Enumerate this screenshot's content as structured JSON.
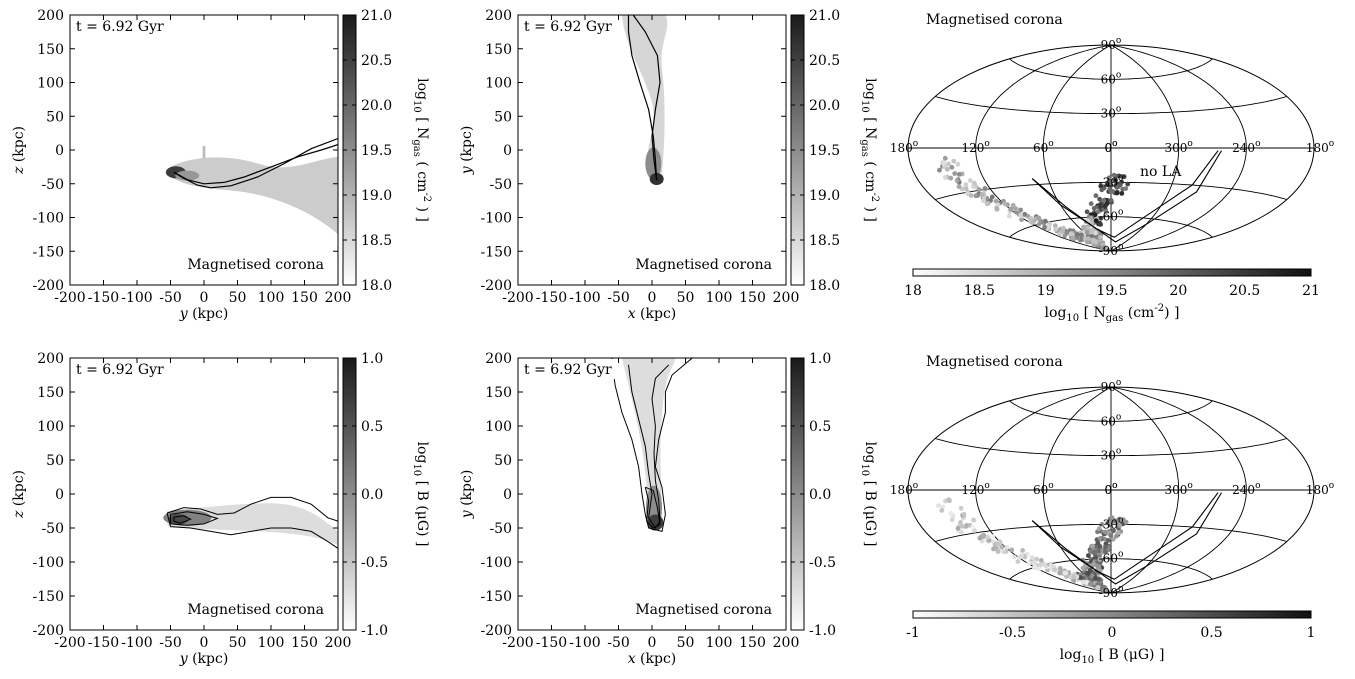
{
  "chart_data": [
    {
      "type": "heatmap",
      "time_label": "t = 6.92 Gyr",
      "annotation": "Magnetised corona",
      "xlabel_var": "y",
      "xlabel_unit": " (kpc)",
      "ylabel_var": "z",
      "ylabel_unit": " (kpc)",
      "xlim": [
        -200,
        200
      ],
      "ylim": [
        -200,
        200
      ],
      "x_ticks": [
        "-200",
        "-150",
        "-100",
        "-50",
        "0",
        "50",
        "100",
        "150",
        "200"
      ],
      "y_ticks": [
        "200",
        "150",
        "100",
        "50",
        "0",
        "-50",
        "-100",
        "-150",
        "-200"
      ],
      "colorbar": {
        "label": "log10 [ Ngas ( cm-2 ) ]",
        "range": [
          18.0,
          21.0
        ],
        "ticks": [
          "21.0",
          "20.5",
          "20.0",
          "19.5",
          "19.0",
          "18.5",
          "18.0"
        ]
      },
      "orbit_paths": [
        [
          [
            -45,
            -33
          ],
          [
            -30,
            -42
          ],
          [
            -10,
            -52
          ],
          [
            10,
            -56
          ],
          [
            40,
            -53
          ],
          [
            80,
            -40
          ],
          [
            120,
            -20
          ],
          [
            160,
            2
          ],
          [
            200,
            17
          ]
        ],
        [
          [
            -45,
            -33
          ],
          [
            -25,
            -44
          ],
          [
            0,
            -50
          ],
          [
            30,
            -48
          ],
          [
            60,
            -40
          ],
          [
            100,
            -25
          ],
          [
            140,
            -10
          ],
          [
            175,
            0
          ],
          [
            200,
            8
          ]
        ]
      ]
    },
    {
      "type": "heatmap",
      "time_label": "t = 6.92 Gyr",
      "annotation": "Magnetised corona",
      "xlabel_var": "x",
      "xlabel_unit": " (kpc)",
      "ylabel_var": "y",
      "ylabel_unit": " (kpc)",
      "xlim": [
        -200,
        200
      ],
      "ylim": [
        -200,
        200
      ],
      "x_ticks": [
        "-200",
        "-150",
        "-100",
        "-50",
        "0",
        "50",
        "100",
        "150",
        "200"
      ],
      "y_ticks": [
        "200",
        "150",
        "100",
        "50",
        "0",
        "-50",
        "-100",
        "-150",
        "-200"
      ],
      "colorbar": {
        "label": "log10 [ Ngas ( cm-2 ) ]",
        "range": [
          18.0,
          21.0
        ],
        "ticks": [
          "21.0",
          "20.5",
          "20.0",
          "19.5",
          "19.0",
          "18.5",
          "18.0"
        ]
      },
      "orbit_paths": [
        [
          [
            -28,
            200
          ],
          [
            -10,
            175
          ],
          [
            8,
            140
          ],
          [
            12,
            100
          ],
          [
            5,
            60
          ],
          [
            0,
            20
          ],
          [
            3,
            -15
          ],
          [
            7,
            -45
          ]
        ],
        [
          [
            -35,
            200
          ],
          [
            -35,
            175
          ],
          [
            -30,
            140
          ],
          [
            -18,
            100
          ],
          [
            -5,
            60
          ],
          [
            2,
            20
          ],
          [
            5,
            -15
          ],
          [
            7,
            -45
          ]
        ]
      ]
    },
    {
      "type": "scatter",
      "title": "Magnetised corona",
      "projection": "aitoff",
      "label": "no LA",
      "lon_labels": [
        "180",
        "120",
        "60",
        "0",
        "300",
        "240",
        "180"
      ],
      "lat_labels": [
        "90",
        "60",
        "30",
        "0",
        "-30",
        "-60",
        "-90"
      ],
      "degree_symbol": "o",
      "colorbar": {
        "label": "log10 [ Ngas (cm-2) ]",
        "range": [
          18,
          21
        ],
        "ticks": [
          "18",
          "18.5",
          "19",
          "19.5",
          "20",
          "20.5",
          "21"
        ]
      }
    },
    {
      "type": "heatmap",
      "time_label": "t = 6.92 Gyr",
      "annotation": "Magnetised corona",
      "xlabel_var": "y",
      "xlabel_unit": " (kpc)",
      "ylabel_var": "z",
      "ylabel_unit": " (kpc)",
      "xlim": [
        -200,
        200
      ],
      "ylim": [
        -200,
        200
      ],
      "x_ticks": [
        "-200",
        "-150",
        "-100",
        "-50",
        "0",
        "50",
        "100",
        "150",
        "200"
      ],
      "y_ticks": [
        "200",
        "150",
        "100",
        "50",
        "0",
        "-50",
        "-100",
        "-150",
        "-200"
      ],
      "colorbar": {
        "label": "log10 [ B (μG) ]",
        "range": [
          -1.0,
          1.0
        ],
        "ticks": [
          "1.0",
          "0.5",
          "0.0",
          "-0.5",
          "-1.0"
        ]
      },
      "contours": [
        [
          [
            -55,
            -28
          ],
          [
            -30,
            -20
          ],
          [
            -5,
            -22
          ],
          [
            20,
            -30
          ],
          [
            45,
            -28
          ],
          [
            70,
            -15
          ],
          [
            100,
            -5
          ],
          [
            130,
            -5
          ],
          [
            160,
            -15
          ],
          [
            185,
            -35
          ],
          [
            200,
            -40
          ],
          [
            200,
            -80
          ],
          [
            185,
            -70
          ],
          [
            160,
            -55
          ],
          [
            130,
            -50
          ],
          [
            100,
            -50
          ],
          [
            70,
            -55
          ],
          [
            40,
            -60
          ],
          [
            10,
            -55
          ],
          [
            -20,
            -50
          ],
          [
            -50,
            -48
          ],
          [
            -55,
            -28
          ]
        ],
        [
          [
            -50,
            -30
          ],
          [
            -25,
            -26
          ],
          [
            0,
            -30
          ],
          [
            20,
            -36
          ],
          [
            0,
            -44
          ],
          [
            -25,
            -46
          ],
          [
            -50,
            -44
          ],
          [
            -50,
            -30
          ]
        ],
        [
          [
            -45,
            -34
          ],
          [
            -30,
            -32
          ],
          [
            -20,
            -37
          ],
          [
            -35,
            -43
          ],
          [
            -45,
            -40
          ],
          [
            -45,
            -34
          ]
        ]
      ]
    },
    {
      "type": "heatmap",
      "time_label": "t = 6.92 Gyr",
      "annotation": "Magnetised corona",
      "xlabel_var": "x",
      "xlabel_unit": " (kpc)",
      "ylabel_var": "y",
      "ylabel_unit": " (kpc)",
      "xlim": [
        -200,
        200
      ],
      "ylim": [
        -200,
        200
      ],
      "x_ticks": [
        "-200",
        "-150",
        "-100",
        "-50",
        "0",
        "50",
        "100",
        "150",
        "200"
      ],
      "y_ticks": [
        "200",
        "150",
        "100",
        "50",
        "0",
        "-50",
        "-100",
        "-150",
        "-200"
      ],
      "colorbar": {
        "label": "log10 [ B (μG) ]",
        "range": [
          -1.0,
          1.0
        ],
        "ticks": [
          "1.0",
          "0.5",
          "0.0",
          "-0.5",
          "-1.0"
        ]
      },
      "contours": [
        [
          [
            -60,
            200
          ],
          [
            -55,
            160
          ],
          [
            -45,
            120
          ],
          [
            -30,
            80
          ],
          [
            -20,
            40
          ],
          [
            -15,
            0
          ],
          [
            -10,
            -30
          ],
          [
            -5,
            -50
          ],
          [
            15,
            -55
          ],
          [
            20,
            -30
          ],
          [
            15,
            10
          ],
          [
            5,
            40
          ],
          [
            10,
            80
          ],
          [
            20,
            120
          ],
          [
            20,
            150
          ],
          [
            30,
            175
          ],
          [
            60,
            200
          ]
        ],
        [
          [
            -35,
            190
          ],
          [
            -30,
            150
          ],
          [
            -20,
            110
          ],
          [
            -10,
            70
          ],
          [
            -5,
            30
          ],
          [
            0,
            0
          ],
          [
            -5,
            -35
          ],
          [
            5,
            -50
          ],
          [
            12,
            -40
          ],
          [
            10,
            -10
          ],
          [
            5,
            20
          ],
          [
            3,
            60
          ],
          [
            5,
            100
          ],
          [
            0,
            140
          ],
          [
            5,
            170
          ],
          [
            25,
            190
          ]
        ],
        [
          [
            -10,
            10
          ],
          [
            -5,
            -10
          ],
          [
            -8,
            -40
          ],
          [
            2,
            -50
          ],
          [
            12,
            -45
          ],
          [
            8,
            -20
          ],
          [
            2,
            5
          ],
          [
            -10,
            10
          ]
        ]
      ]
    },
    {
      "type": "scatter",
      "title": "Magnetised corona",
      "projection": "aitoff",
      "lon_labels": [
        "180",
        "120",
        "60",
        "0",
        "300",
        "240",
        "180"
      ],
      "lat_labels": [
        "90",
        "60",
        "30",
        "0",
        "-30",
        "-60",
        "-90"
      ],
      "degree_symbol": "o",
      "colorbar": {
        "label": "log10 [ B (μG) ]",
        "range": [
          -1,
          1
        ],
        "ticks": [
          "-1",
          "-0.5",
          "0",
          "0.5",
          "1"
        ]
      }
    }
  ]
}
